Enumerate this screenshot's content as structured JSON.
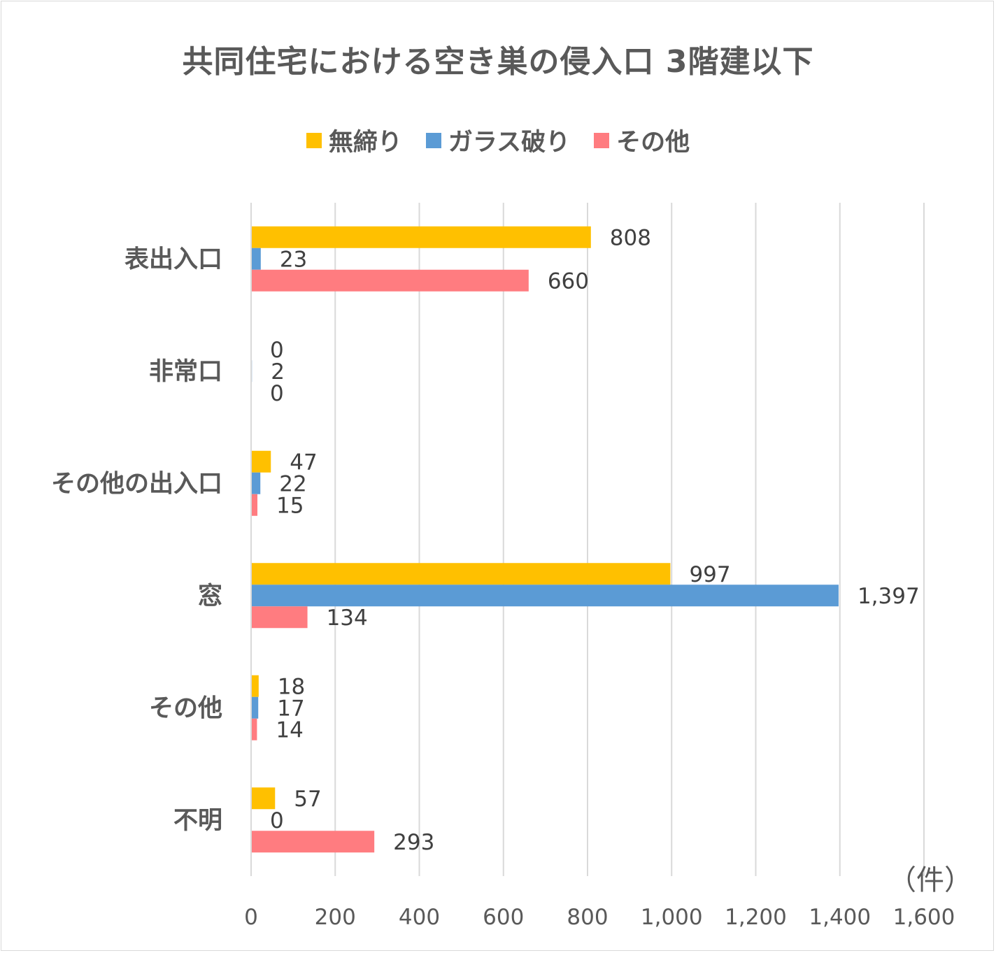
{
  "chart_data": {
    "type": "bar",
    "orientation": "horizontal",
    "title": "共同住宅における空き巣の侵入口 3階建以下",
    "unit_label": "（件）",
    "categories": [
      "表出入口",
      "非常口",
      "その他の出入口",
      "窓",
      "その他",
      "不明"
    ],
    "series": [
      {
        "name": "無締り",
        "color": "#ffc000",
        "values": [
          808,
          0,
          47,
          997,
          18,
          57
        ]
      },
      {
        "name": "ガラス破り",
        "color": "#5b9bd5",
        "values": [
          23,
          2,
          22,
          1397,
          17,
          0
        ]
      },
      {
        "name": "その他",
        "color": "#ff7c80",
        "values": [
          660,
          0,
          15,
          134,
          14,
          293
        ]
      }
    ],
    "data_labels": [
      [
        "808",
        "0",
        "47",
        "997",
        "18",
        "57"
      ],
      [
        "23",
        "2",
        "22",
        "1,397",
        "17",
        "0"
      ],
      [
        "660",
        "0",
        "15",
        "134",
        "14",
        "293"
      ]
    ],
    "xlim": [
      0,
      1600
    ],
    "x_ticks": [
      0,
      200,
      400,
      600,
      800,
      1000,
      1200,
      1400,
      1600
    ],
    "x_tick_labels": [
      "0",
      "200",
      "400",
      "600",
      "800",
      "1,000",
      "1,200",
      "1,400",
      "1,600"
    ],
    "grid": true,
    "legend_position": "top"
  }
}
